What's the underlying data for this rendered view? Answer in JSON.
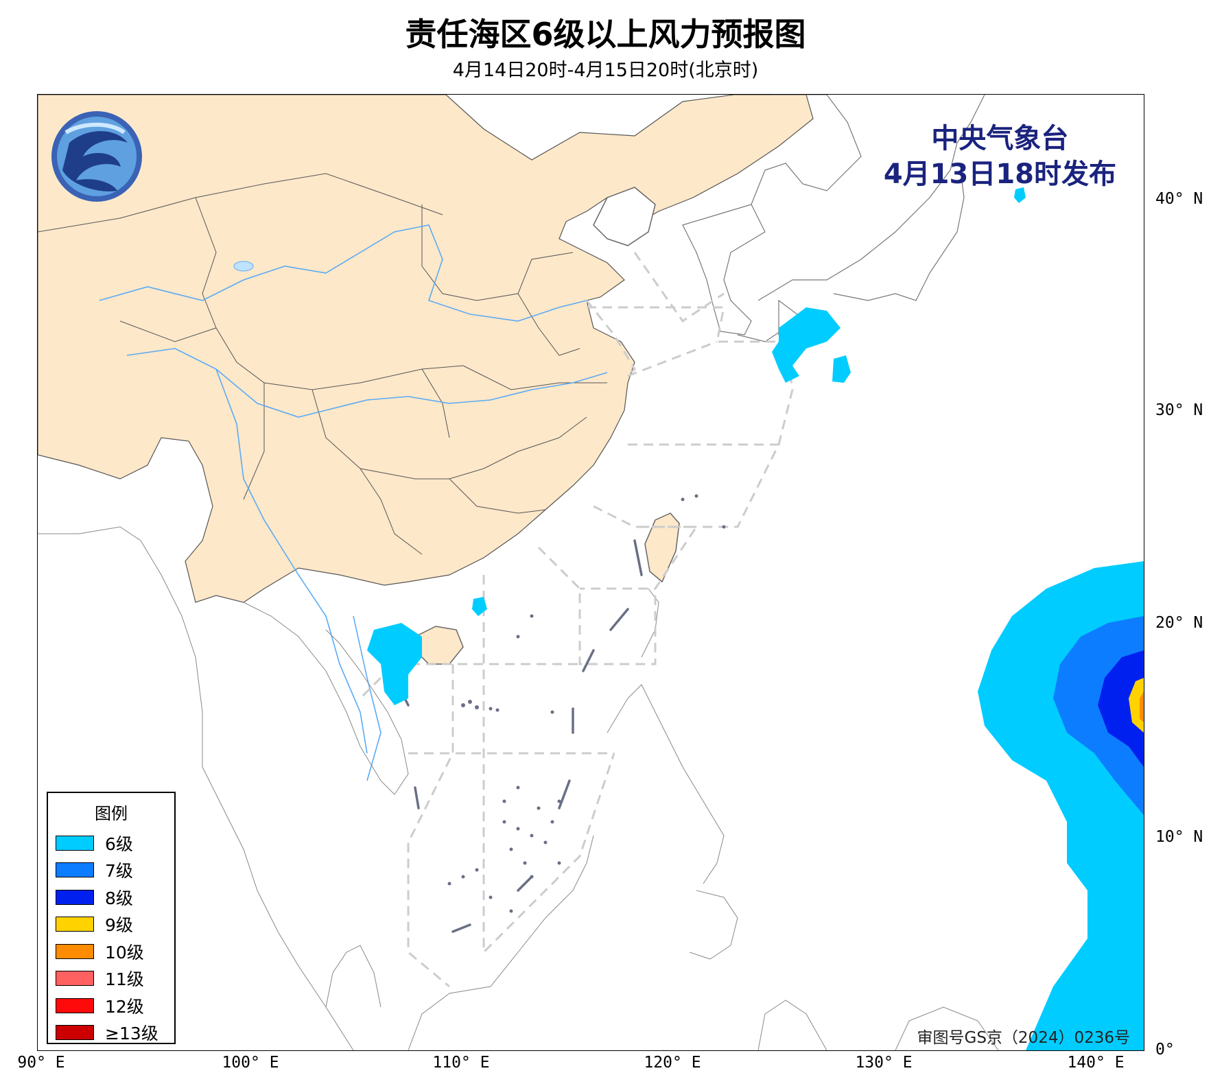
{
  "title": "责任海区6级以上风力预报图",
  "subtitle": "4月14日20时-4月15日20时(北京时)",
  "issuer": {
    "line1": "中央气象台",
    "line2": "4月13日18时发布"
  },
  "approval": "审图号GS京（2024）0236号",
  "axes": {
    "x_ticks": [
      "90° E",
      "100° E",
      "110° E",
      "120° E",
      "130° E",
      "140° E"
    ],
    "y_ticks": [
      "0°",
      "10° N",
      "20° N",
      "30° N",
      "40° N"
    ]
  },
  "legend": {
    "title": "图例",
    "items": [
      {
        "label": "6级",
        "color": "#00ccff"
      },
      {
        "label": "7级",
        "color": "#0d7dff"
      },
      {
        "label": "8级",
        "color": "#0020f0"
      },
      {
        "label": "9级",
        "color": "#ffd200"
      },
      {
        "label": "10级",
        "color": "#ff8c00"
      },
      {
        "label": "11级",
        "color": "#ff6060"
      },
      {
        "label": "12级",
        "color": "#ff0a0a"
      },
      {
        "label": "≥13级",
        "color": "#cc0000"
      }
    ]
  },
  "colors": {
    "land_china": "#fde8c9",
    "ocean": "#ffffff",
    "rivers": "#5aaaf5",
    "borders": "#555555",
    "sea_zones": "#cccccc"
  }
}
